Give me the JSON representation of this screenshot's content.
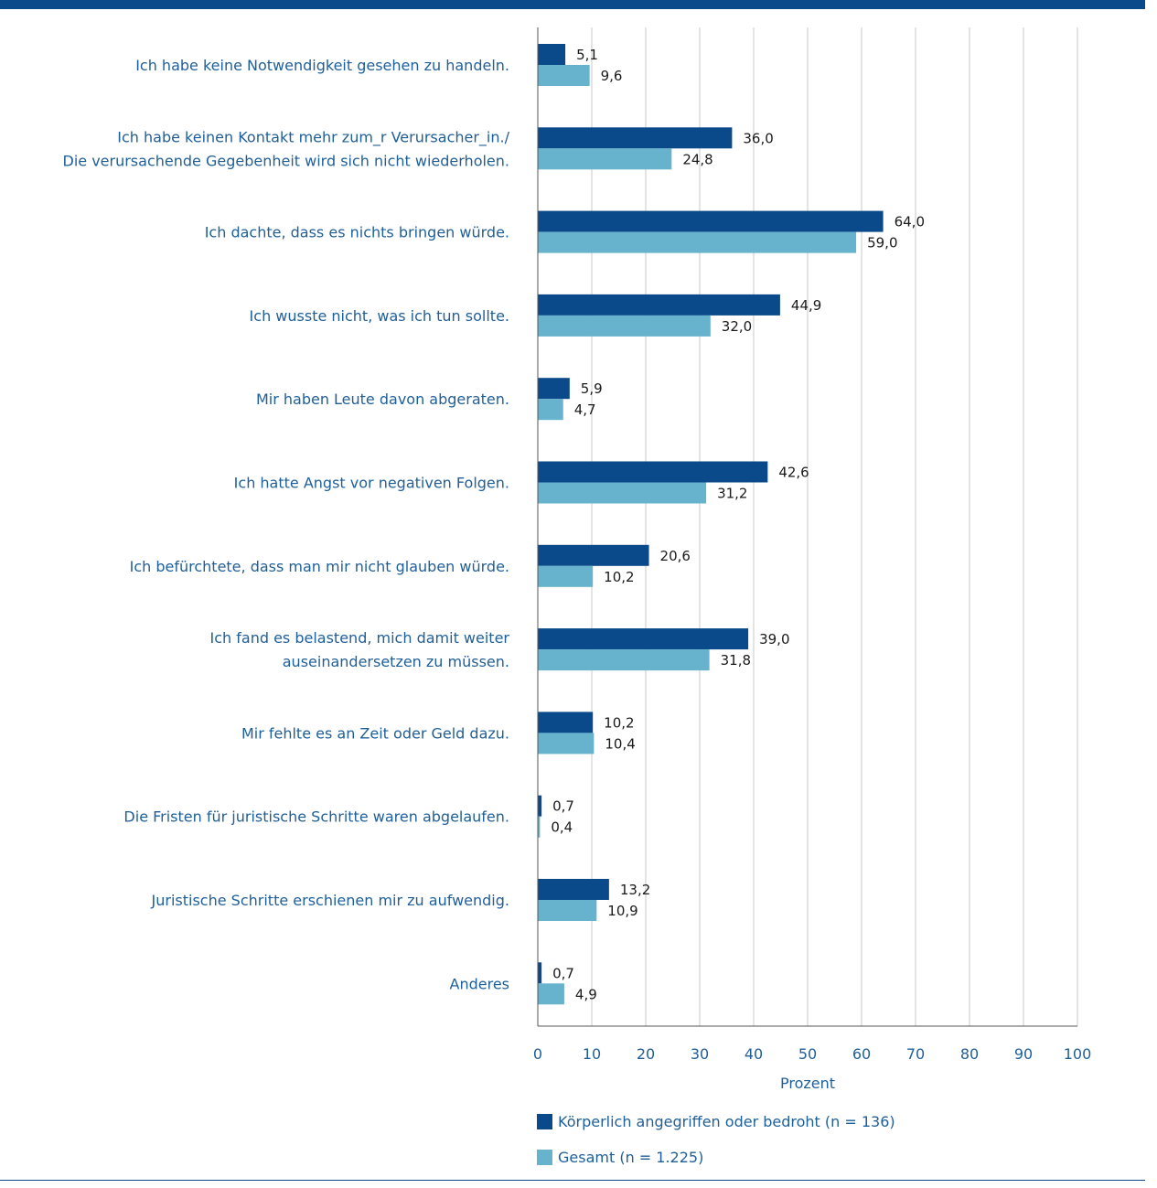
{
  "chart_data": {
    "type": "bar",
    "orientation": "horizontal",
    "categories": [
      [
        "Ich habe keine Notwendigkeit gesehen zu handeln."
      ],
      [
        "Ich habe keinen Kontakt mehr zum_r Verursacher_in./",
        "Die verursachende Gegebenheit wird sich nicht wiederholen."
      ],
      [
        "Ich dachte, dass es nichts bringen würde."
      ],
      [
        "Ich wusste nicht, was ich tun sollte."
      ],
      [
        "Mir haben Leute davon abgeraten."
      ],
      [
        "Ich hatte Angst vor negativen Folgen."
      ],
      [
        "Ich befürchtete, dass man mir nicht glauben würde."
      ],
      [
        "Ich fand es belastend, mich damit weiter",
        "auseinandersetzen zu müssen."
      ],
      [
        "Mir fehlte es an Zeit oder Geld dazu."
      ],
      [
        "Die Fristen für juristische Schritte waren abgelaufen."
      ],
      [
        "Juristische Schritte erschienen mir zu aufwendig."
      ],
      [
        "Anderes"
      ]
    ],
    "series": [
      {
        "name": "Körperlich angegriffen oder bedroht (n = 136)",
        "color": "#0b4a8a",
        "values": [
          5.1,
          36.0,
          64.0,
          44.9,
          5.9,
          42.6,
          20.6,
          39.0,
          10.2,
          0.7,
          13.2,
          0.7
        ],
        "labels": [
          "5,1",
          "36,0",
          "64,0",
          "44,9",
          "5,9",
          "42,6",
          "20,6",
          "39,0",
          "10,2",
          "0,7",
          "13,2",
          "0,7"
        ]
      },
      {
        "name": "Gesamt (n = 1.225)",
        "color": "#67b2cc",
        "values": [
          9.6,
          24.8,
          59.0,
          32.0,
          4.7,
          31.2,
          10.2,
          31.8,
          10.4,
          0.4,
          10.9,
          4.9
        ],
        "labels": [
          "9,6",
          "24,8",
          "59,0",
          "32,0",
          "4,7",
          "31,2",
          "10,2",
          "31,8",
          "10,4",
          "0,4",
          "10,9",
          "4,9"
        ]
      }
    ],
    "xlabel": "Prozent",
    "xlim": [
      0,
      100
    ],
    "xticks": [
      0,
      10,
      20,
      30,
      40,
      50,
      60,
      70,
      80,
      90,
      100
    ],
    "grid": true,
    "legend_position": "bottom"
  }
}
